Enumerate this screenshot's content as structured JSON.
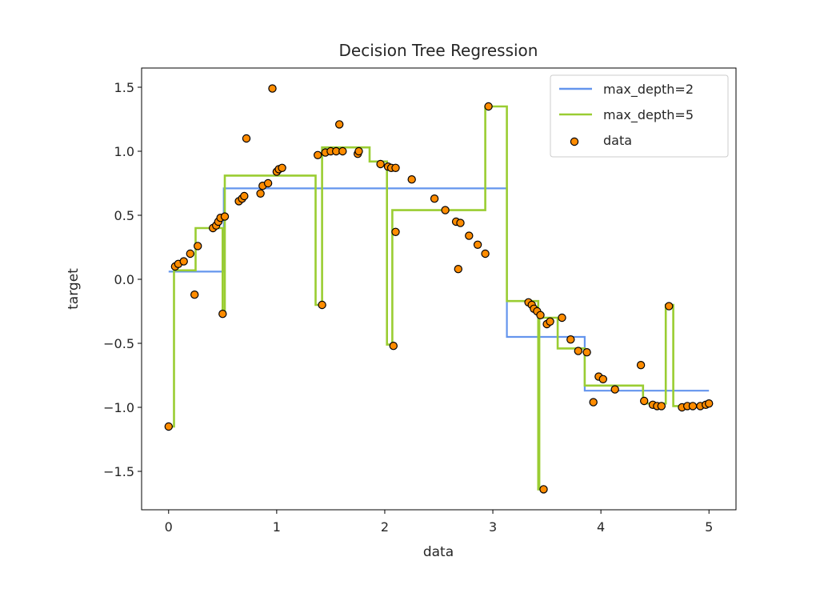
{
  "chart_data": {
    "type": "line",
    "title": "Decision Tree Regression",
    "xlabel": "data",
    "ylabel": "target",
    "xlim": [
      -0.25,
      5.25
    ],
    "ylim": [
      -1.8,
      1.65
    ],
    "xticks": [
      0,
      1,
      2,
      3,
      4,
      5
    ],
    "xtick_labels": [
      "0",
      "1",
      "2",
      "3",
      "4",
      "5"
    ],
    "yticks": [
      1.5,
      1.0,
      0.5,
      0.0,
      -0.5,
      -1.0,
      -1.5
    ],
    "ytick_labels": [
      "1.5",
      "1.0",
      "0.5",
      "0.0",
      "−0.5",
      "−1.0",
      "−1.5"
    ],
    "grid": false,
    "legend_position": "top-right",
    "series": [
      {
        "name": "max_depth=2",
        "kind": "step",
        "color": "#6495ed",
        "x": [
          0.0,
          0.51,
          0.51,
          3.13,
          3.13,
          3.85,
          3.85,
          5.0
        ],
        "y": [
          0.06,
          0.06,
          0.71,
          0.71,
          -0.45,
          -0.45,
          -0.87,
          -0.87
        ]
      },
      {
        "name": "max_depth=5",
        "kind": "step",
        "color": "#9acd32",
        "x": [
          0.0,
          0.05,
          0.05,
          0.25,
          0.25,
          0.5,
          0.5,
          0.52,
          0.52,
          1.36,
          1.36,
          1.42,
          1.42,
          1.86,
          1.86,
          2.02,
          2.02,
          2.07,
          2.07,
          2.93,
          2.93,
          3.13,
          3.13,
          3.42,
          3.42,
          3.43,
          3.43,
          3.6,
          3.6,
          3.85,
          3.85,
          4.39,
          4.39,
          4.6,
          4.6,
          4.67,
          4.67,
          5.0
        ],
        "y": [
          -1.15,
          -1.15,
          0.07,
          0.07,
          0.4,
          0.4,
          -0.27,
          -0.27,
          0.81,
          0.81,
          -0.2,
          -0.2,
          1.03,
          1.03,
          0.92,
          0.92,
          -0.51,
          -0.51,
          0.54,
          0.54,
          1.35,
          1.35,
          -0.17,
          -0.17,
          -1.64,
          -1.64,
          -0.3,
          -0.3,
          -0.54,
          -0.54,
          -0.83,
          -0.83,
          -0.97,
          -0.97,
          -0.2,
          -0.2,
          -0.99,
          -0.99
        ]
      },
      {
        "name": "data",
        "kind": "scatter",
        "color": "#ff8c00",
        "edgecolor": "#000000",
        "x": [
          0.0,
          0.06,
          0.09,
          0.14,
          0.2,
          0.24,
          0.27,
          0.41,
          0.44,
          0.46,
          0.48,
          0.5,
          0.52,
          0.65,
          0.68,
          0.7,
          0.72,
          0.85,
          0.87,
          0.92,
          0.96,
          1.0,
          1.02,
          1.05,
          1.38,
          1.42,
          1.45,
          1.5,
          1.55,
          1.58,
          1.61,
          1.75,
          1.76,
          1.96,
          2.03,
          2.06,
          2.08,
          2.1,
          2.1,
          2.25,
          2.46,
          2.56,
          2.66,
          2.68,
          2.7,
          2.78,
          2.86,
          2.93,
          2.96,
          3.33,
          3.36,
          3.38,
          3.41,
          3.44,
          3.47,
          3.5,
          3.53,
          3.64,
          3.72,
          3.79,
          3.87,
          3.93,
          3.98,
          4.02,
          4.13,
          4.37,
          4.4,
          4.48,
          4.52,
          4.56,
          4.63,
          4.75,
          4.8,
          4.85,
          4.92,
          4.97,
          5.0
        ],
        "y": [
          -1.15,
          0.1,
          0.12,
          0.14,
          0.2,
          -0.12,
          0.26,
          0.4,
          0.42,
          0.45,
          0.48,
          -0.27,
          0.49,
          0.61,
          0.63,
          0.65,
          1.1,
          0.67,
          0.73,
          0.75,
          1.49,
          0.84,
          0.86,
          0.87,
          0.97,
          -0.2,
          0.99,
          1.0,
          1.0,
          1.21,
          1.0,
          0.98,
          1.0,
          0.9,
          0.88,
          0.87,
          -0.52,
          0.87,
          0.37,
          0.78,
          0.63,
          0.54,
          0.45,
          0.08,
          0.44,
          0.34,
          0.27,
          0.2,
          1.35,
          -0.18,
          -0.2,
          -0.23,
          -0.25,
          -0.28,
          -1.64,
          -0.35,
          -0.33,
          -0.3,
          -0.47,
          -0.56,
          -0.57,
          -0.96,
          -0.76,
          -0.78,
          -0.86,
          -0.67,
          -0.95,
          -0.98,
          -0.99,
          -0.99,
          -0.21,
          -1.0,
          -0.99,
          -0.99,
          -0.99,
          -0.98,
          -0.97
        ]
      }
    ]
  }
}
